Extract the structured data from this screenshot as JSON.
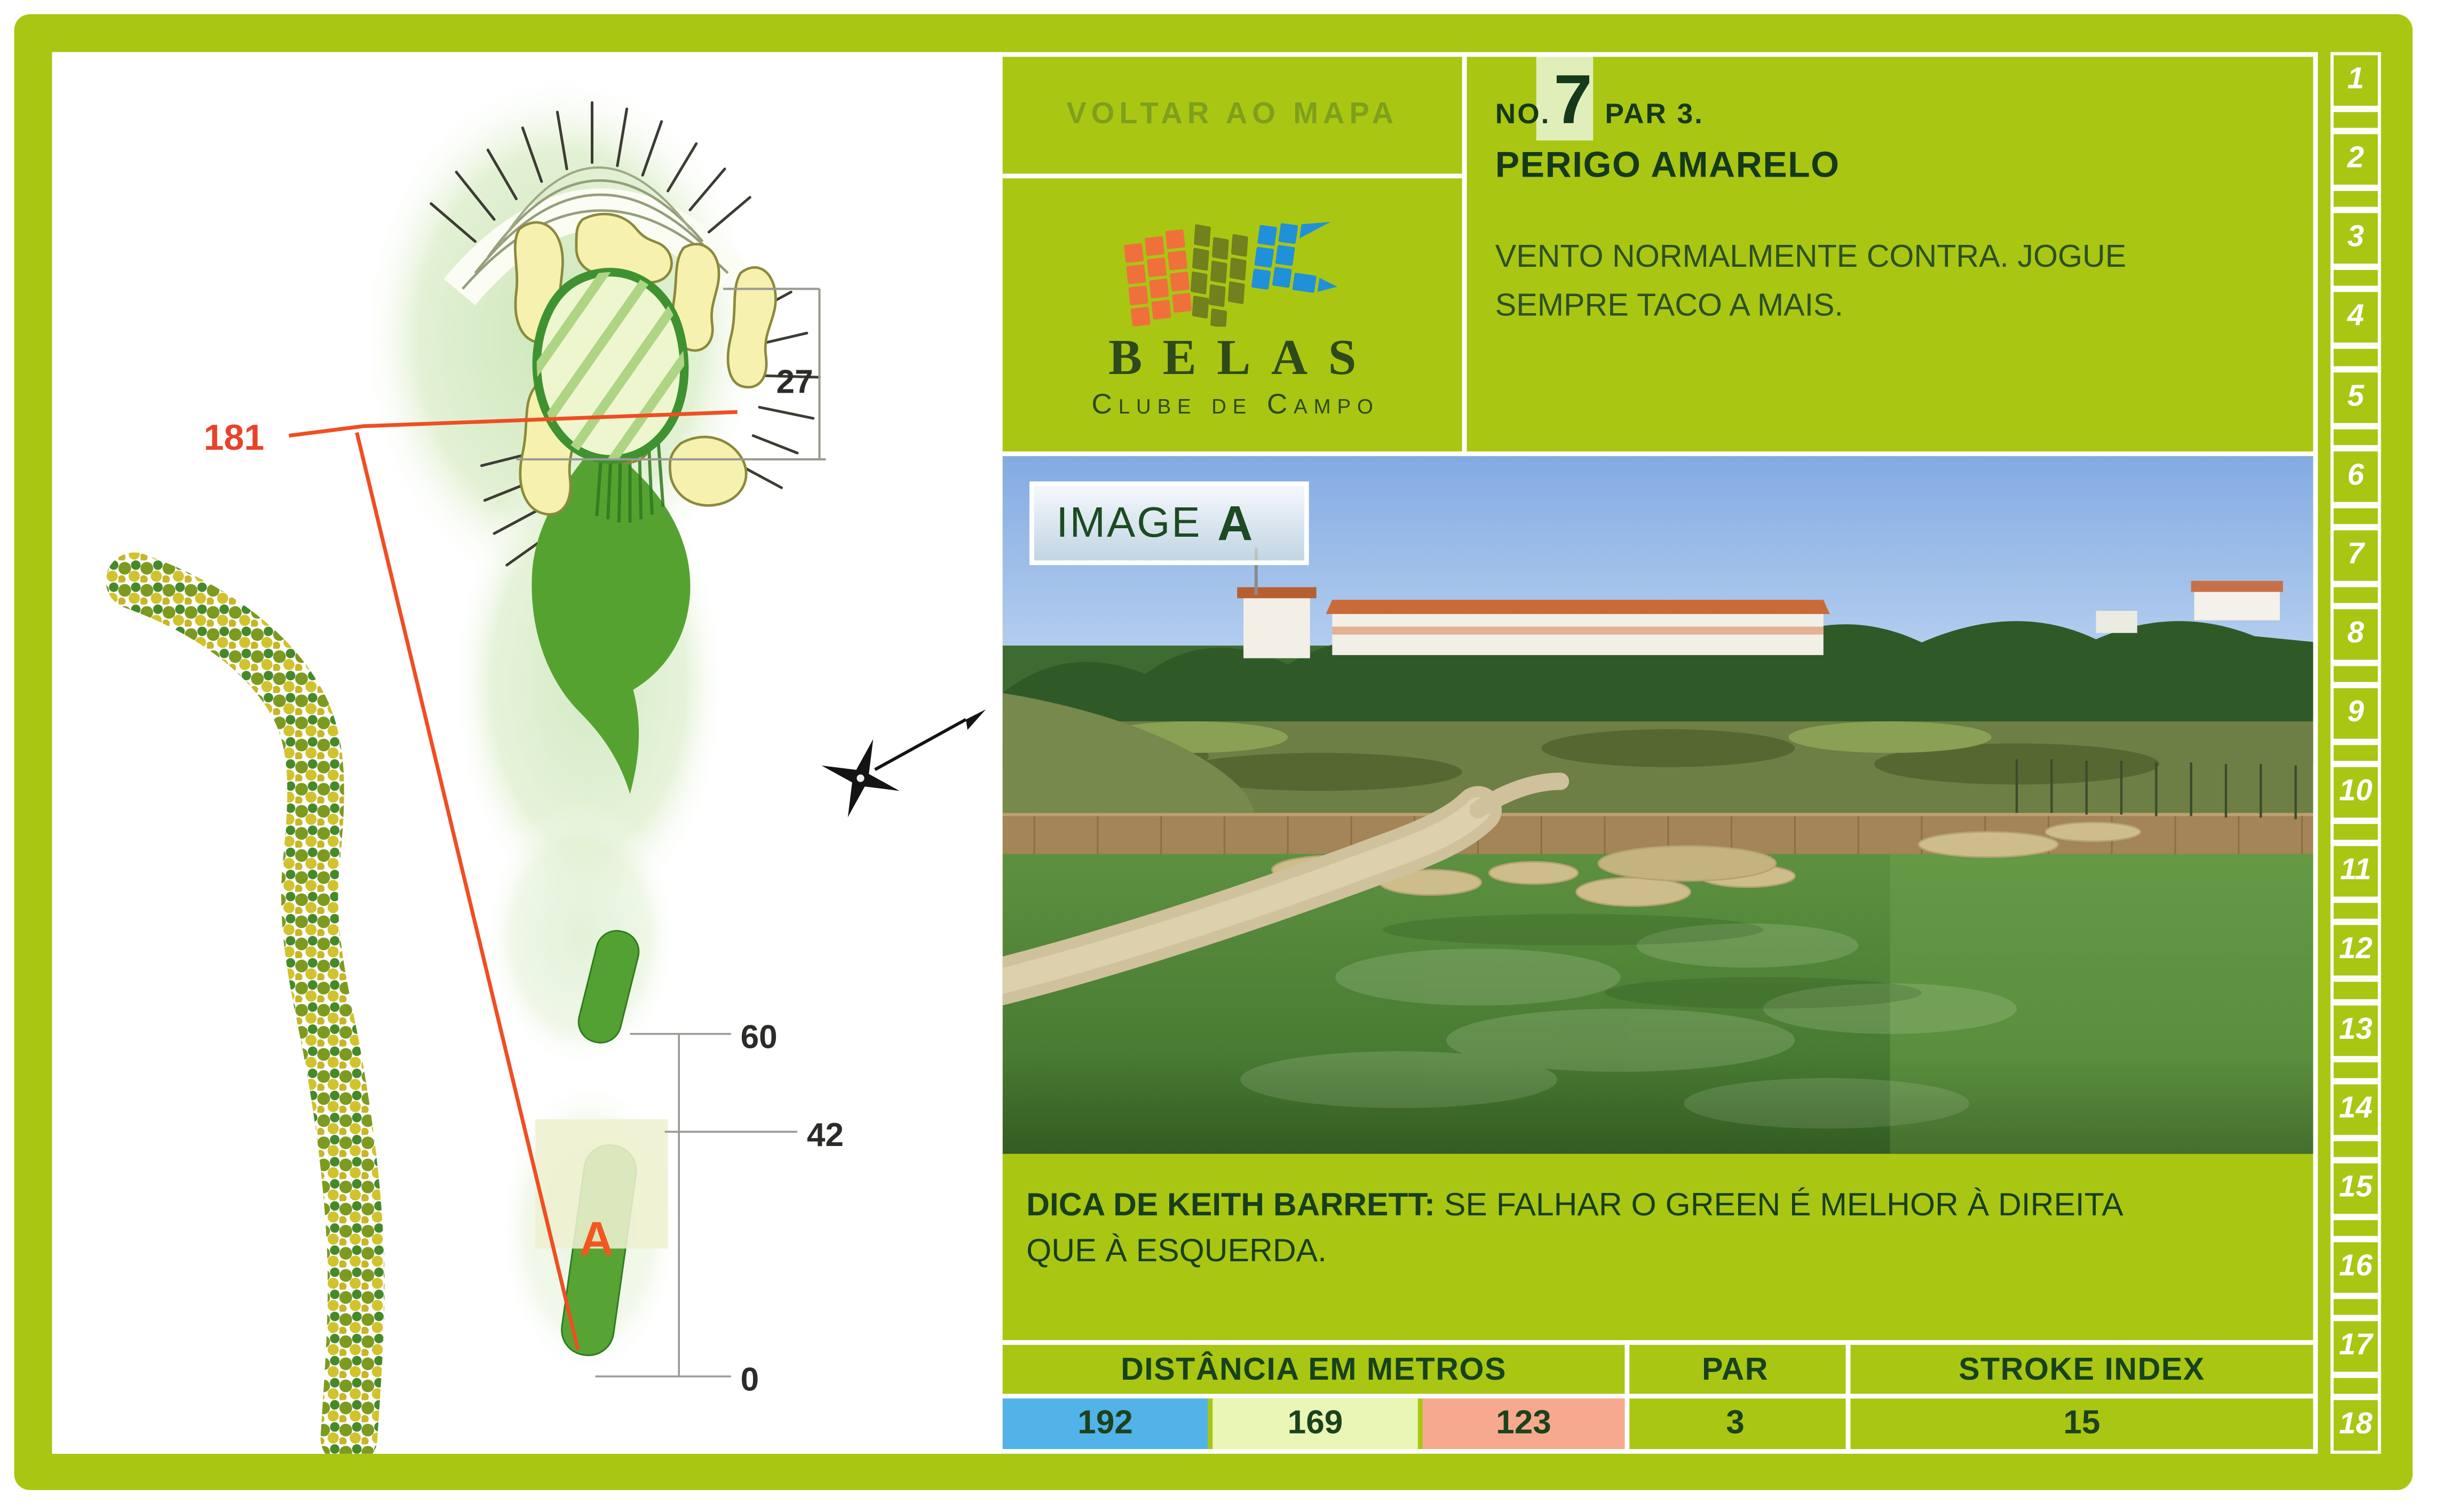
{
  "back_link": {
    "label": "VOLTAR AO MAPA"
  },
  "logo": {
    "title": "BELAS",
    "subtitle": "Clube de Campo"
  },
  "hole_header": {
    "no_label": "NO.",
    "number": "7",
    "par_label": "PAR 3.",
    "name": "PERIGO AMARELO"
  },
  "advice": "VENTO NORMALMENTE CONTRA. JOGUE SEMPRE TACO A MAIS.",
  "image_label": {
    "word": "IMAGE",
    "letter": "A"
  },
  "tip": {
    "label": "DICA DE KEITH BARRETT:",
    "text": " SE FALHAR O GREEN É MELHOR À DIREITA QUE À ESQUERDA."
  },
  "scorecard": {
    "distance_header": "DISTÂNCIA EM METROS",
    "par_header": "PAR",
    "stroke_header": "STROKE INDEX",
    "distances": [
      {
        "tee": "blue",
        "meters": "192",
        "color": "#52b3e9"
      },
      {
        "tee": "yellow",
        "meters": "169",
        "color": "#e9f6b6"
      },
      {
        "tee": "red",
        "meters": "123",
        "color": "#f6a98e"
      }
    ],
    "par": "3",
    "stroke_index": "15"
  },
  "hole_nav": {
    "holes": [
      "1",
      "2",
      "3",
      "4",
      "5",
      "6",
      "7",
      "8",
      "9",
      "10",
      "11",
      "12",
      "13",
      "14",
      "15",
      "16",
      "17",
      "18"
    ],
    "current": "7"
  },
  "map": {
    "carry_distance": "181",
    "green_depth": "27",
    "distance_marks": [
      "60",
      "42",
      "0"
    ],
    "camera_marker": "A"
  },
  "colors": {
    "frame_green": "#a9c613",
    "dark_green_text": "#17421d",
    "olive_link": "#7f9f1d",
    "red_line": "#ef4e23",
    "tee_blue": "#52b3e9",
    "tee_yellow": "#e9f6b6",
    "tee_red": "#f6a98e"
  }
}
